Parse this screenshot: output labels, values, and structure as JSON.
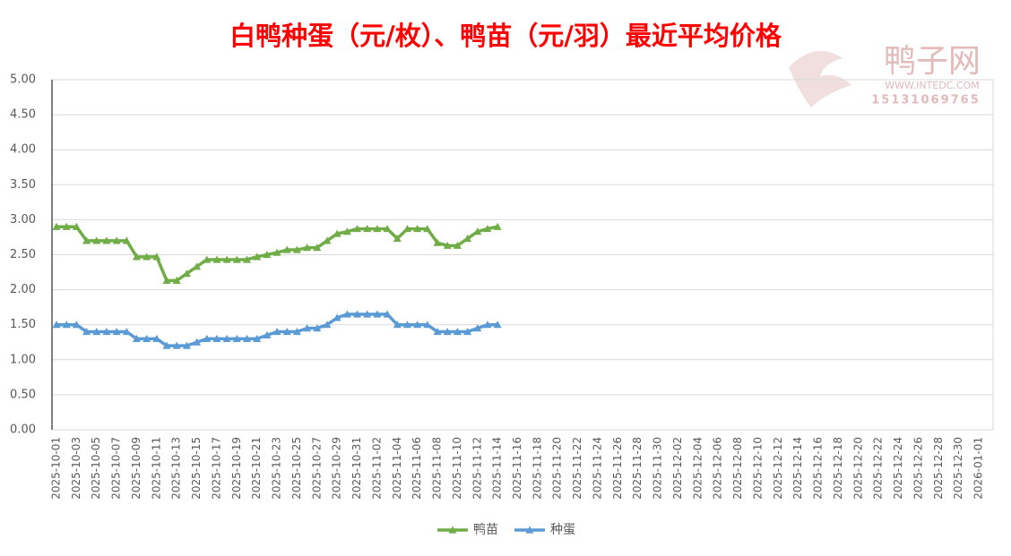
{
  "chart_data": {
    "type": "line",
    "title": "白鸭种蛋（元/枚）、鸭苗（元/羽）最近平均价格",
    "watermark": {
      "text": "鸭子网",
      "site": "WWW.INTEDC.COM",
      "phone": "15131069765"
    },
    "categories": [
      "2025-10-01",
      null,
      "2025-10-03",
      null,
      "2025-10-05",
      null,
      "2025-10-07",
      null,
      "2025-10-09",
      null,
      "2025-10-11",
      null,
      "2025-10-13",
      null,
      "2025-10-15",
      null,
      "2025-10-17",
      null,
      "2025-10-19",
      null,
      "2025-10-21",
      null,
      "2025-10-23",
      null,
      "2025-10-25",
      null,
      "2025-10-27",
      null,
      "2025-10-29",
      null,
      "2025-10-31",
      null,
      "2025-11-02",
      null,
      "2025-11-04",
      null,
      "2025-11-06",
      null,
      "2025-11-08",
      null,
      "2025-11-10",
      null,
      "2025-11-12",
      null,
      "2025-11-14",
      null,
      "2025-11-16",
      null,
      "2025-11-18",
      null,
      "2025-11-20",
      null,
      "2025-11-22",
      null,
      "2025-11-24",
      null,
      "2025-11-26",
      null,
      "2025-11-28",
      null,
      "2025-11-30",
      null,
      "2025-12-02",
      null,
      "2025-12-04",
      null,
      "2025-12-06",
      null,
      "2025-12-08",
      null,
      "2025-12-10",
      null,
      "2025-12-12",
      null,
      "2025-12-14",
      null,
      "2025-12-16",
      null,
      "2025-12-18",
      null,
      "2025-12-20",
      null,
      "2025-12-22",
      null,
      "2025-12-24",
      null,
      "2025-12-26",
      null,
      "2025-12-28",
      null,
      "2025-12-30",
      null,
      "2026-01-01"
    ],
    "series": [
      {
        "name": "鸭苗",
        "color": "#70ad47",
        "values": [
          2.9,
          2.9,
          2.9,
          2.7,
          2.7,
          2.7,
          2.7,
          2.7,
          2.47,
          2.47,
          2.47,
          2.13,
          2.13,
          2.23,
          2.33,
          2.43,
          2.43,
          2.43,
          2.43,
          2.43,
          2.47,
          2.5,
          2.53,
          2.57,
          2.57,
          2.6,
          2.6,
          2.7,
          2.8,
          2.83,
          2.87,
          2.87,
          2.87,
          2.87,
          2.73,
          2.87,
          2.87,
          2.87,
          2.67,
          2.63,
          2.63,
          2.73,
          2.83,
          2.87,
          2.9,
          null,
          null,
          null,
          null,
          null,
          null,
          null,
          null,
          null,
          null,
          null,
          null,
          null,
          null,
          null,
          null,
          null,
          null,
          null,
          null,
          null,
          null,
          null,
          null,
          null,
          null,
          null,
          null,
          null,
          null,
          null,
          null,
          null,
          null,
          null,
          null,
          null,
          null,
          null,
          null,
          null,
          null,
          null,
          null,
          null,
          null,
          null,
          null
        ]
      },
      {
        "name": "种蛋",
        "color": "#5b9bd5",
        "values": [
          1.5,
          1.5,
          1.5,
          1.4,
          1.4,
          1.4,
          1.4,
          1.4,
          1.3,
          1.3,
          1.3,
          1.2,
          1.2,
          1.2,
          1.25,
          1.3,
          1.3,
          1.3,
          1.3,
          1.3,
          1.3,
          1.35,
          1.4,
          1.4,
          1.4,
          1.45,
          1.45,
          1.5,
          1.6,
          1.65,
          1.65,
          1.65,
          1.65,
          1.65,
          1.5,
          1.5,
          1.5,
          1.5,
          1.4,
          1.4,
          1.4,
          1.4,
          1.45,
          1.5,
          1.5,
          null,
          null,
          null,
          null,
          null,
          null,
          null,
          null,
          null,
          null,
          null,
          null,
          null,
          null,
          null,
          null,
          null,
          null,
          null,
          null,
          null,
          null,
          null,
          null,
          null,
          null,
          null,
          null,
          null,
          null,
          null,
          null,
          null,
          null,
          null,
          null,
          null,
          null,
          null,
          null,
          null,
          null,
          null,
          null,
          null,
          null,
          null,
          null
        ]
      }
    ],
    "ylim": [
      0,
      5
    ],
    "yticks": [
      {
        "value": 0,
        "label": "0.00"
      },
      {
        "value": 0.5,
        "label": "0.50"
      },
      {
        "value": 1,
        "label": "1.00"
      },
      {
        "value": 1.5,
        "label": "1.50"
      },
      {
        "value": 2,
        "label": "2.00"
      },
      {
        "value": 2.5,
        "label": "2.50"
      },
      {
        "value": 3,
        "label": "3.00"
      },
      {
        "value": 3.5,
        "label": "3.50"
      },
      {
        "value": 4,
        "label": "4.00"
      },
      {
        "value": 4.5,
        "label": "4.50"
      },
      {
        "value": 5,
        "label": "5.00"
      }
    ],
    "grid": true,
    "legend": "bottom"
  }
}
